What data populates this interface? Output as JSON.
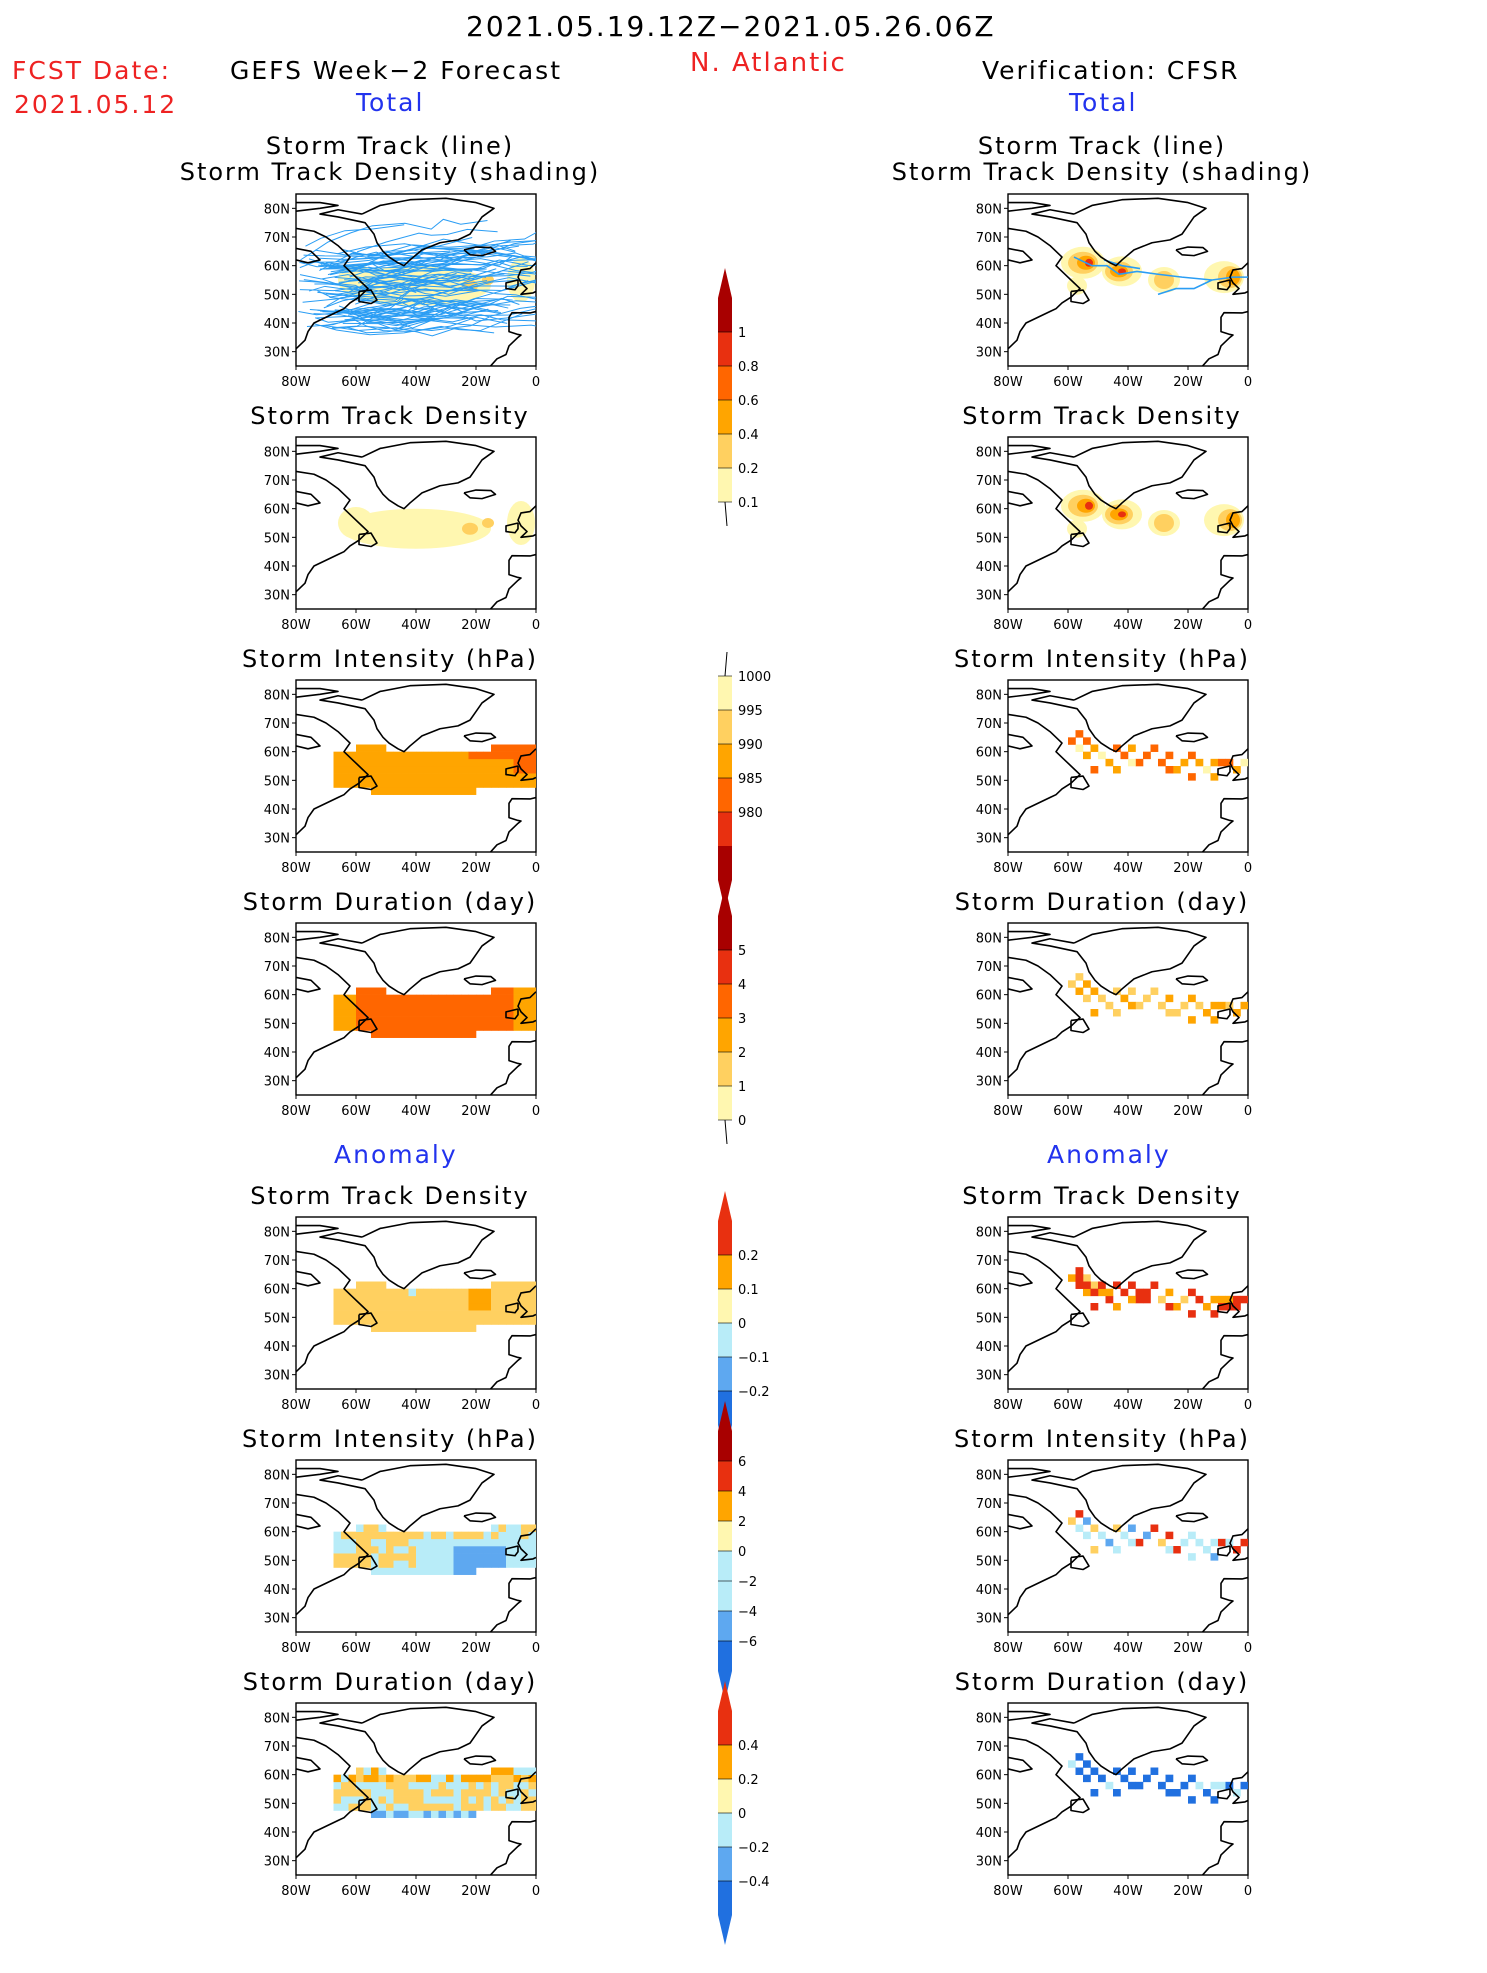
{
  "header": {
    "date_range": "2021.05.19.12Z−2021.05.26.06Z",
    "region": "N. Atlantic",
    "fcst_label": "FCST Date:",
    "fcst_date": "2021.05.12",
    "left_title": "GEFS Week−2 Forecast",
    "right_title": "Verification: CFSR",
    "total_label": "Total",
    "anomaly_label": "Anomaly"
  },
  "panel_titles": {
    "track_line": "Storm Track (line)",
    "track_shading": "Storm Track Density (shading)",
    "density": "Storm Track Density",
    "intensity": "Storm Intensity (hPa)",
    "duration": "Storm Duration (day)"
  },
  "axes": {
    "lat_ticks": [
      "80N",
      "70N",
      "60N",
      "50N",
      "40N",
      "30N"
    ],
    "lon_ticks": [
      "80W",
      "60W",
      "40W",
      "20W",
      "0"
    ]
  },
  "colorbars": {
    "density_total": [
      "0.1",
      "0.2",
      "0.4",
      "0.6",
      "0.8",
      "1"
    ],
    "intensity_total": [
      "1000",
      "995",
      "990",
      "985",
      "980"
    ],
    "duration_total": [
      "0",
      "1",
      "2",
      "3",
      "4",
      "5"
    ],
    "density_anom": [
      "0.2",
      "0.1",
      "0",
      "−0.1",
      "−0.2"
    ],
    "intensity_anom": [
      "6",
      "4",
      "2",
      "0",
      "−2",
      "−4",
      "−6"
    ],
    "duration_anom": [
      "0.4",
      "0.2",
      "0",
      "−0.2",
      "−0.4"
    ]
  },
  "colors": {
    "track_line": "#2a9df4",
    "pale_yellow": "#fff7b0",
    "light_orange": "#ffd060",
    "orange": "#ffa500",
    "dark_orange": "#ff6600",
    "red": "#e83010",
    "dark_red": "#a80000",
    "light_blue": "#b8ecf8",
    "mid_blue": "#5ea8f0",
    "blue": "#2070e0"
  }
}
